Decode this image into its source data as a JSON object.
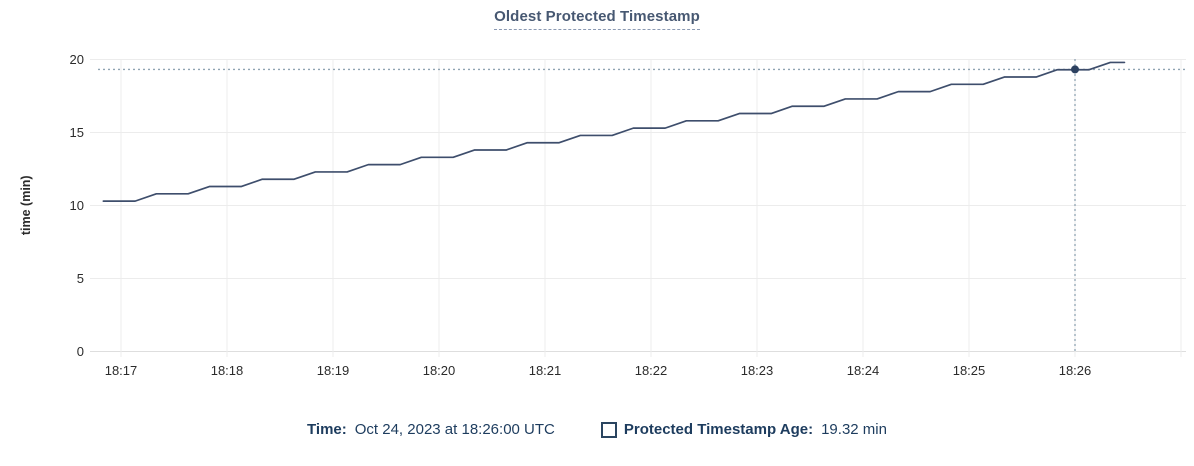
{
  "title": "Oldest Protected Timestamp",
  "hover_readout": {
    "time_label": "Time:",
    "time_value": "Oct 24, 2023 at 18:26:00 UTC",
    "series_label": "Protected Timestamp Age:",
    "series_value": "19.32 min"
  },
  "chart_data": {
    "type": "line",
    "title": "Oldest Protected Timestamp",
    "xlabel": "",
    "ylabel": "time (min)",
    "ylim": [
      0,
      20
    ],
    "yticks": [
      0,
      5,
      10,
      15,
      20
    ],
    "grid": true,
    "legend_position": "bottom",
    "x_axis": {
      "unit": "seconds after 18:16:00 UTC",
      "ticks": [
        {
          "t": 60,
          "label": "18:17"
        },
        {
          "t": 120,
          "label": "18:18"
        },
        {
          "t": 180,
          "label": "18:19"
        },
        {
          "t": 240,
          "label": "18:20"
        },
        {
          "t": 300,
          "label": "18:21"
        },
        {
          "t": 360,
          "label": "18:22"
        },
        {
          "t": 420,
          "label": "18:23"
        },
        {
          "t": 480,
          "label": "18:24"
        },
        {
          "t": 540,
          "label": "18:25"
        },
        {
          "t": 600,
          "label": "18:26"
        },
        {
          "t": 660,
          "label": ""
        }
      ]
    },
    "series": [
      {
        "name": "Protected Timestamp Age",
        "unit": "min",
        "points": [
          [
            50,
            10.3
          ],
          [
            68,
            10.3
          ],
          [
            80,
            10.8
          ],
          [
            98,
            10.8
          ],
          [
            110,
            11.3
          ],
          [
            128,
            11.3
          ],
          [
            140,
            11.8
          ],
          [
            158,
            11.8
          ],
          [
            170,
            12.3
          ],
          [
            188,
            12.3
          ],
          [
            200,
            12.8
          ],
          [
            218,
            12.8
          ],
          [
            230,
            13.3
          ],
          [
            248,
            13.3
          ],
          [
            260,
            13.8
          ],
          [
            278,
            13.8
          ],
          [
            290,
            14.3
          ],
          [
            308,
            14.3
          ],
          [
            320,
            14.8
          ],
          [
            338,
            14.8
          ],
          [
            350,
            15.3
          ],
          [
            368,
            15.3
          ],
          [
            380,
            15.8
          ],
          [
            398,
            15.8
          ],
          [
            410,
            16.3
          ],
          [
            428,
            16.3
          ],
          [
            440,
            16.8
          ],
          [
            458,
            16.8
          ],
          [
            470,
            17.3
          ],
          [
            488,
            17.3
          ],
          [
            500,
            17.8
          ],
          [
            518,
            17.8
          ],
          [
            530,
            18.3
          ],
          [
            548,
            18.3
          ],
          [
            560,
            18.8
          ],
          [
            578,
            18.8
          ],
          [
            590,
            19.3
          ],
          [
            608,
            19.3
          ],
          [
            620,
            19.8
          ],
          [
            628,
            19.8
          ]
        ]
      }
    ],
    "hover": {
      "t": 600,
      "time": "Oct 24, 2023 at 18:26:00 UTC",
      "value": 19.32,
      "value_label": "19.32 min"
    }
  },
  "colors": {
    "line": "#3e4e6c",
    "marker": "#2c4160",
    "crosshair": "#8fa3b2",
    "grid": "#ececec",
    "axis_line": "#dedede",
    "axis_text": "#2b2b2b",
    "title_text": "#475872",
    "title_underline": "#8b9ab3",
    "legend_text": "#1d3c5e"
  }
}
